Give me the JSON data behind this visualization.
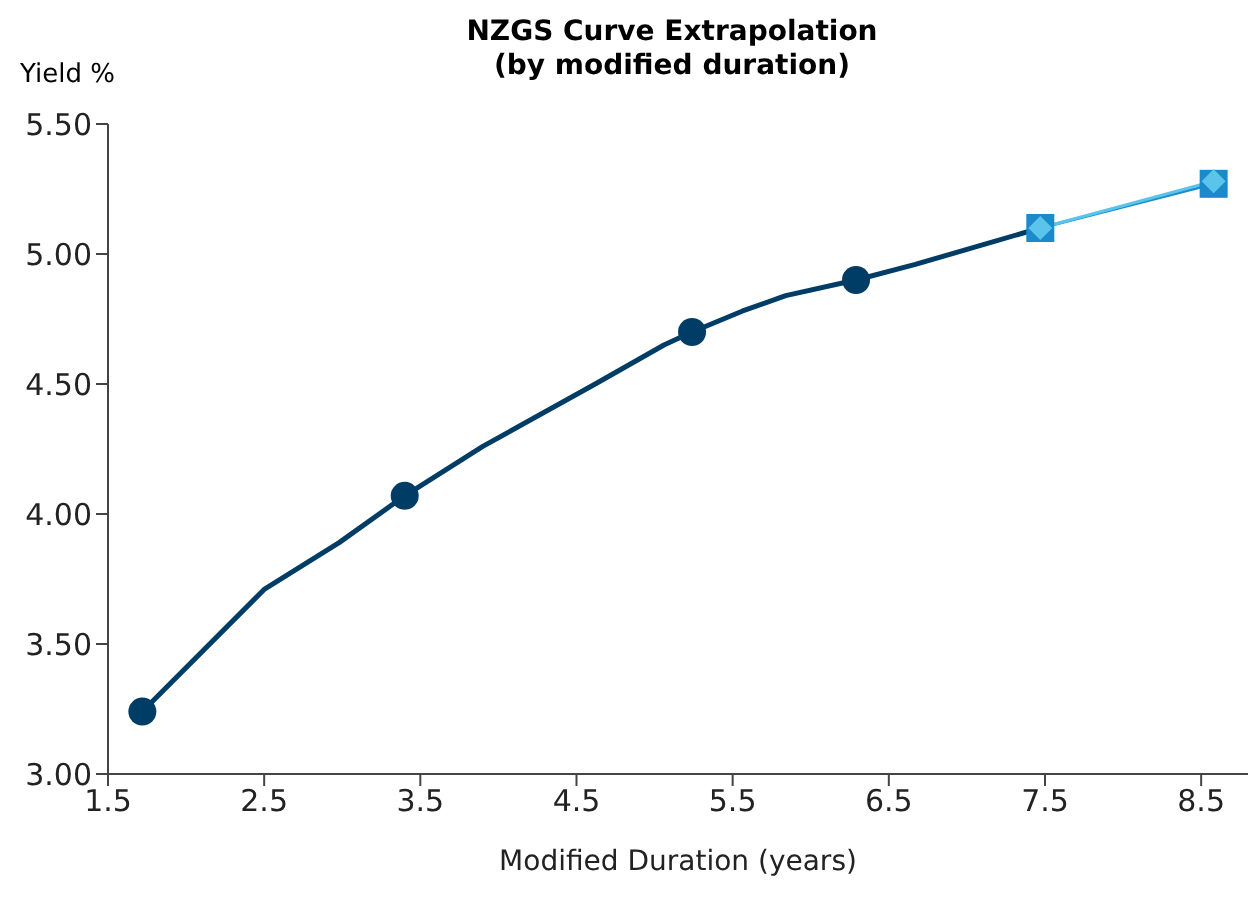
{
  "chart_data": {
    "type": "line",
    "title": "NZGS Curve Extrapolation",
    "subtitle": "(by modified duration)",
    "xlabel": "Modified Duration (years)",
    "ylabel": "Yield %",
    "xlim": [
      1.5,
      8.8
    ],
    "xticks": [
      1.5,
      2.5,
      3.5,
      4.5,
      5.5,
      6.5,
      7.5,
      8.5
    ],
    "ylim": [
      3,
      5.5
    ],
    "yticks": [
      {
        "value": 3,
        "label": "3.00"
      },
      {
        "value": 3.5,
        "label": "3.50"
      },
      {
        "value": 4,
        "label": "4.00"
      },
      {
        "value": 4.5,
        "label": "4.50"
      },
      {
        "value": 5,
        "label": "5.00"
      },
      {
        "value": 5.5,
        "label": "5.50"
      }
    ],
    "grid": false,
    "series": [
      {
        "marker": "none",
        "color": "#003d66",
        "x": [
          1.72,
          2.5,
          2.98,
          3.4,
          3.9,
          4.62,
          5.06,
          5.24,
          5.56,
          5.84,
          6.29,
          6.67,
          7.47
        ],
        "values": [
          3.24,
          3.71,
          3.89,
          4.07,
          4.26,
          4.5,
          4.65,
          4.7,
          4.78,
          4.84,
          4.9,
          4.96,
          5.1
        ]
      },
      {
        "type": "scatter",
        "marker": "circle",
        "color": "#003d66",
        "x": [
          1.72,
          3.4,
          5.24,
          6.29
        ],
        "values": [
          3.24,
          4.07,
          4.7,
          4.9
        ]
      },
      {
        "marker": "square",
        "color": "#1a8acb",
        "x": [
          7.47,
          8.58
        ],
        "values": [
          5.1,
          5.27
        ]
      },
      {
        "marker": "diamond",
        "color": "#5bc4ea",
        "x": [
          7.47,
          8.58
        ],
        "values": [
          5.1,
          5.28
        ]
      }
    ]
  }
}
